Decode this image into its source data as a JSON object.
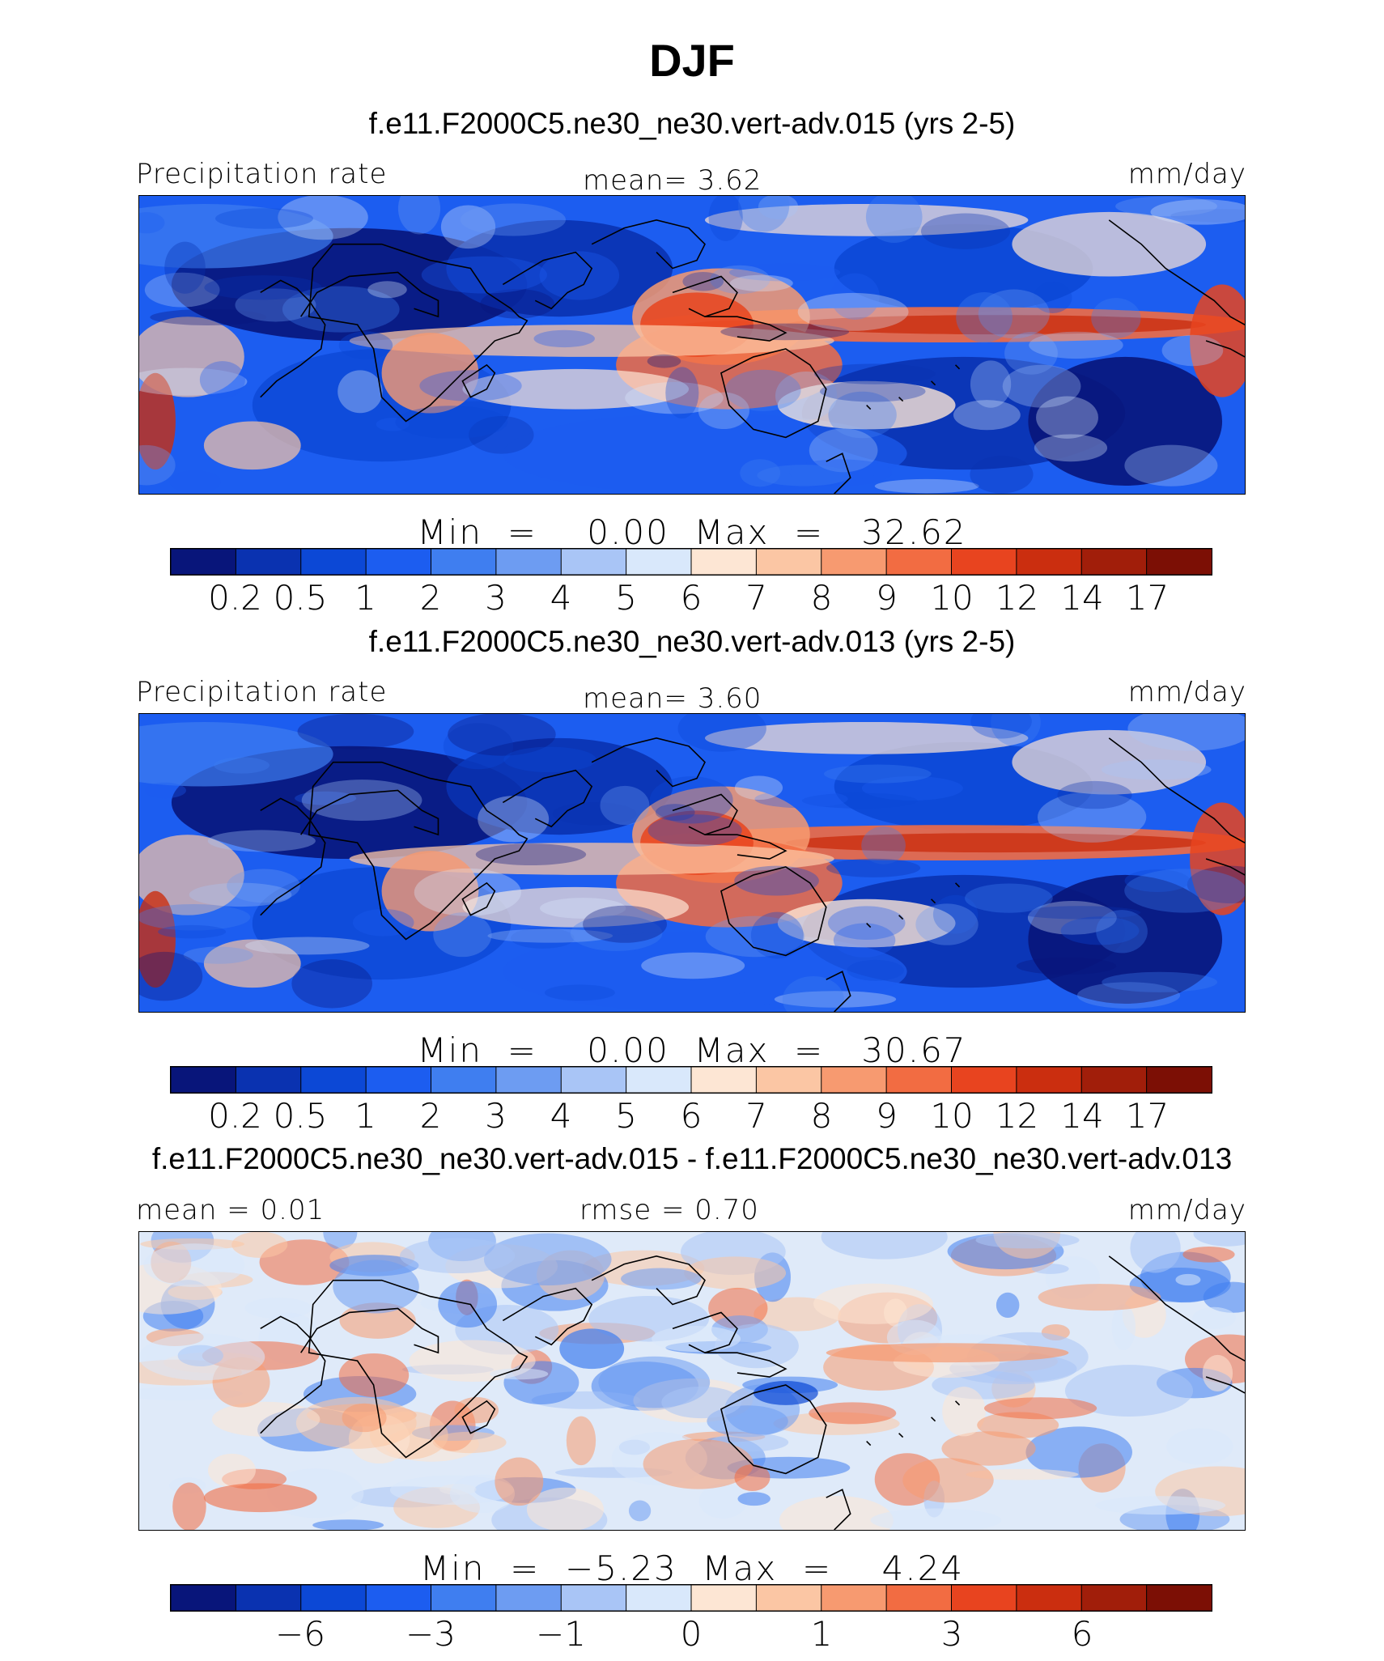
{
  "title": "DJF",
  "palette": [
    "#08157a",
    "#0a32b0",
    "#0c48d6",
    "#1c5df0",
    "#3f7ef0",
    "#6d9cf2",
    "#a9c5f6",
    "#d9e8fb",
    "#fde6d4",
    "#fbc6a4",
    "#f79a70",
    "#f26c42",
    "#e8441f",
    "#cb2e0f",
    "#a11e0a",
    "#7c0f05"
  ],
  "coast_color": "#000000",
  "panels": [
    {
      "title": "f.e11.F2000C5.ne30_ne30.vert-adv.015 (yrs 2-5)",
      "left_label": "Precipitation rate",
      "center_label": "mean=   3.62",
      "right_label": "mm/day",
      "stats": "Min  =    0.00  Max  =   32.62",
      "colorbar_ticks": [
        "0.2",
        "0.5",
        "1",
        "2",
        "3",
        "4",
        "5",
        "6",
        "7",
        "8",
        "9",
        "10",
        "12",
        "14",
        "17"
      ],
      "kind": "precip",
      "seed": 11
    },
    {
      "title": "f.e11.F2000C5.ne30_ne30.vert-adv.013 (yrs 2-5)",
      "left_label": "Precipitation rate",
      "center_label": "mean=   3.60",
      "right_label": "mm/day",
      "stats": "Min  =    0.00  Max  =   30.67",
      "colorbar_ticks": [
        "0.2",
        "0.5",
        "1",
        "2",
        "3",
        "4",
        "5",
        "6",
        "7",
        "8",
        "9",
        "10",
        "12",
        "14",
        "17"
      ],
      "kind": "precip",
      "seed": 23
    },
    {
      "title": "f.e11.F2000C5.ne30_ne30.vert-adv.015 - f.e11.F2000C5.ne30_ne30.vert-adv.013",
      "left_label": "mean =    0.01",
      "center_label": "rmse =    0.70",
      "right_label": "mm/day",
      "stats": "Min  =  −5.23  Max  =    4.24",
      "colorbar_ticks": [
        "−6",
        "−3",
        "−1",
        "0",
        "1",
        "3",
        "6"
      ],
      "kind": "diff",
      "seed": 37
    }
  ],
  "chart_data": [
    {
      "type": "heatmap",
      "title": "f.e11.F2000C5.ne30_ne30.vert-adv.015 (yrs 2-5)",
      "variable": "Precipitation rate",
      "units": "mm/day",
      "mean": 3.62,
      "min": 0.0,
      "max": 32.62,
      "levels": [
        0.2,
        0.5,
        1,
        2,
        3,
        4,
        5,
        6,
        7,
        8,
        9,
        10,
        12,
        14,
        17
      ]
    },
    {
      "type": "heatmap",
      "title": "f.e11.F2000C5.ne30_ne30.vert-adv.013 (yrs 2-5)",
      "variable": "Precipitation rate",
      "units": "mm/day",
      "mean": 3.6,
      "min": 0.0,
      "max": 30.67,
      "levels": [
        0.2,
        0.5,
        1,
        2,
        3,
        4,
        5,
        6,
        7,
        8,
        9,
        10,
        12,
        14,
        17
      ]
    },
    {
      "type": "heatmap",
      "title": "f.e11.F2000C5.ne30_ne30.vert-adv.015 - f.e11.F2000C5.ne30_ne30.vert-adv.013",
      "units": "mm/day",
      "mean": 0.01,
      "rmse": 0.7,
      "min": -5.23,
      "max": 4.24,
      "tick_labels": [
        -6,
        -3,
        -1,
        0,
        1,
        3,
        6
      ]
    }
  ]
}
